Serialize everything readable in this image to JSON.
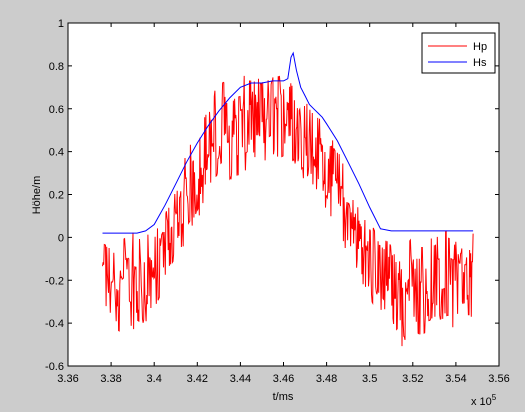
{
  "chart_data": {
    "type": "line",
    "xlabel": "t/ms",
    "ylabel": "Höhe/m",
    "x_multiplier": "x 10",
    "x_multiplier_exponent": "5",
    "xlim": [
      3.36,
      3.56
    ],
    "ylim": [
      -0.6,
      1.0
    ],
    "xticks": [
      "3.36",
      "3.38",
      "3.4",
      "3.42",
      "3.44",
      "3.46",
      "3.48",
      "3.5",
      "3.52",
      "3.54",
      "3.56"
    ],
    "yticks": [
      "-0.6",
      "-0.4",
      "-0.2",
      "0",
      "0.2",
      "0.4",
      "0.6",
      "0.8",
      "1"
    ],
    "grid": false,
    "legend": "top-right",
    "colors": {
      "Hp": "#ff0000",
      "Hs": "#0000ff",
      "figure_bg": "#cccccc",
      "axes_bg": "#ffffff"
    },
    "series": [
      {
        "name": "Hp",
        "x": [
          3.376,
          3.38,
          3.384,
          3.388,
          3.392,
          3.396,
          3.4,
          3.404,
          3.408,
          3.412,
          3.416,
          3.42,
          3.424,
          3.428,
          3.432,
          3.436,
          3.44,
          3.444,
          3.448,
          3.452,
          3.456,
          3.46,
          3.464,
          3.468,
          3.472,
          3.476,
          3.48,
          3.484,
          3.488,
          3.492,
          3.496,
          3.5,
          3.504,
          3.508,
          3.512,
          3.516,
          3.52,
          3.524,
          3.528,
          3.532,
          3.536,
          3.54,
          3.544,
          3.548
        ],
        "y": [
          -0.18,
          -0.2,
          -0.22,
          -0.18,
          -0.2,
          -0.22,
          -0.18,
          -0.08,
          0.05,
          0.12,
          0.22,
          0.28,
          0.36,
          0.42,
          0.48,
          0.5,
          0.52,
          0.55,
          0.56,
          0.57,
          0.57,
          0.58,
          0.56,
          0.52,
          0.46,
          0.4,
          0.32,
          0.24,
          0.14,
          0.04,
          -0.04,
          -0.1,
          -0.16,
          -0.2,
          -0.24,
          -0.26,
          -0.25,
          -0.24,
          -0.22,
          -0.2,
          -0.2,
          -0.18,
          -0.2,
          -0.18
        ],
        "y_max": [
          0.02,
          0.0,
          0.02,
          0.05,
          0.0,
          0.02,
          0.02,
          0.1,
          0.25,
          0.32,
          0.42,
          0.52,
          0.6,
          0.7,
          0.76,
          0.74,
          0.75,
          0.76,
          0.76,
          0.76,
          0.76,
          0.77,
          0.74,
          0.7,
          0.64,
          0.58,
          0.52,
          0.44,
          0.36,
          0.24,
          0.12,
          0.1,
          0.0,
          0.0,
          0.0,
          -0.04,
          0.02,
          0.0,
          0.0,
          0.02,
          0.05,
          0.03,
          0.02,
          0.02
        ],
        "y_min": [
          -0.4,
          -0.42,
          -0.44,
          -0.4,
          -0.45,
          -0.44,
          -0.35,
          -0.25,
          -0.14,
          -0.08,
          0.02,
          0.08,
          0.15,
          0.22,
          0.25,
          0.27,
          0.28,
          0.32,
          0.32,
          0.32,
          0.36,
          0.38,
          0.34,
          0.28,
          0.25,
          0.2,
          0.12,
          0.04,
          -0.05,
          -0.14,
          -0.2,
          -0.28,
          -0.36,
          -0.44,
          -0.44,
          -0.56,
          -0.48,
          -0.46,
          -0.44,
          -0.44,
          -0.42,
          -0.42,
          -0.4,
          -0.4
        ]
      },
      {
        "name": "Hs",
        "x": [
          3.376,
          3.385,
          3.392,
          3.396,
          3.4,
          3.405,
          3.41,
          3.415,
          3.42,
          3.425,
          3.43,
          3.435,
          3.44,
          3.445,
          3.45,
          3.455,
          3.46,
          3.462,
          3.4635,
          3.4645,
          3.466,
          3.468,
          3.47,
          3.472,
          3.474,
          3.476,
          3.478,
          3.48,
          3.485,
          3.49,
          3.495,
          3.5,
          3.505,
          3.51,
          3.52,
          3.53,
          3.54,
          3.548
        ],
        "y": [
          0.02,
          0.02,
          0.02,
          0.03,
          0.06,
          0.15,
          0.25,
          0.35,
          0.44,
          0.52,
          0.59,
          0.65,
          0.7,
          0.72,
          0.72,
          0.73,
          0.73,
          0.74,
          0.84,
          0.86,
          0.78,
          0.7,
          0.66,
          0.62,
          0.6,
          0.58,
          0.56,
          0.53,
          0.45,
          0.35,
          0.25,
          0.14,
          0.04,
          0.03,
          0.03,
          0.03,
          0.03,
          0.03
        ]
      }
    ]
  }
}
